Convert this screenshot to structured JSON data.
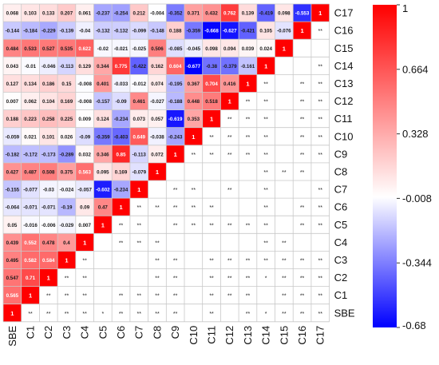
{
  "chart_data": {
    "type": "heatmap",
    "title": "",
    "xlabel": "",
    "ylabel": "",
    "labels": [
      "SBE",
      "C1",
      "C2",
      "C3",
      "C4",
      "C5",
      "C6",
      "C7",
      "C8",
      "C9",
      "C10",
      "C11",
      "C12",
      "C13",
      "C14",
      "C15",
      "C16",
      "C17"
    ],
    "row_order_top_to_bottom": [
      "C17",
      "C16",
      "C15",
      "C14",
      "C13",
      "C12",
      "C11",
      "C10",
      "C9",
      "C8",
      "C7",
      "C6",
      "C5",
      "C4",
      "C3",
      "C2",
      "C1",
      "SBE"
    ],
    "diagonal_value": "1",
    "lower_triangle": {
      "C1": [
        "0.565"
      ],
      "C2": [
        "0.547",
        "0.71"
      ],
      "C3": [
        "0.495",
        "0.582",
        "0.584"
      ],
      "C4": [
        "0.439",
        "0.552",
        "0.478",
        "0.4"
      ],
      "C5": [
        "0.05",
        "-0.016",
        "-0.006",
        "-0.029",
        "0.007"
      ],
      "C6": [
        "-0.064",
        "-0.071",
        "-0.071",
        "-0.19",
        "0.09",
        "0.47"
      ],
      "C7": [
        "-0.155",
        "-0.077",
        "-0.03",
        "-0.024",
        "-0.057",
        "-0.602",
        "-0.234"
      ],
      "C8": [
        "0.427",
        "0.487",
        "0.508",
        "0.375",
        "0.563",
        "0.095",
        "0.169",
        "-0.079"
      ],
      "C9": [
        "-0.182",
        "-0.172",
        "-0.173",
        "-0.289",
        "0.032",
        "0.346",
        "0.85",
        "-0.113",
        "0.072"
      ],
      "C10": [
        "-0.059",
        "0.021",
        "0.101",
        "0.026",
        "-0.09",
        "-0.359",
        "-0.403",
        "0.649",
        "-0.038",
        "-0.243"
      ],
      "C11": [
        "0.188",
        "0.223",
        "0.258",
        "0.225",
        "0.009",
        "0.124",
        "-0.234",
        "0.073",
        "0.057",
        "-0.619",
        "0.353"
      ],
      "C12": [
        "0.007",
        "0.062",
        "0.104",
        "0.169",
        "-0.008",
        "-0.157",
        "-0.09",
        "0.461",
        "-0.027",
        "-0.188",
        "0.448",
        "0.518"
      ],
      "C13": [
        "0.127",
        "0.134",
        "0.186",
        "0.15",
        "-0.008",
        "0.401",
        "-0.033",
        "-0.012",
        "0.074",
        "-0.195",
        "0.367",
        "0.704",
        "0.416"
      ],
      "C14": [
        "0.043",
        "-0.01",
        "-0.046",
        "-0.113",
        "0.129",
        "0.344",
        "0.775",
        "-0.422",
        "0.162",
        "0.604",
        "-0.677",
        "-0.38",
        "-0.379",
        "-0.161"
      ],
      "C15": [
        "0.484",
        "0.533",
        "0.527",
        "0.535",
        "0.622",
        "-0.02",
        "-0.021",
        "-0.025",
        "0.506",
        "-0.085",
        "-0.045",
        "0.098",
        "0.094",
        "0.039",
        "0.024"
      ],
      "C16": [
        "-0.144",
        "-0.184",
        "-0.229",
        "-0.139",
        "-0.04",
        "-0.132",
        "-0.132",
        "-0.099",
        "-0.148",
        "0.188",
        "-0.359",
        "-0.668",
        "-0.627",
        "-0.421",
        "0.105",
        "-0.076"
      ],
      "C17": [
        "0.068",
        "0.103",
        "0.133",
        "0.207",
        "0.061",
        "-0.237",
        "-0.254",
        "0.212",
        "-0.004",
        "-0.352",
        "0.371",
        "0.432",
        "0.762",
        "0.139",
        "-0.419",
        "0.098",
        "-0.553"
      ]
    },
    "upper_triangle": {
      "C1": [
        "**"
      ],
      "C2": [
        "**",
        "**"
      ],
      "C3": [
        "**",
        "**",
        "**"
      ],
      "C4": [
        "**",
        "**",
        "**",
        "**"
      ],
      "C5": [
        "*",
        "",
        "",
        "",
        ""
      ],
      "C6": [
        "**",
        "**",
        "",
        "",
        "**",
        "**"
      ],
      "C7": [
        "**",
        "**",
        "",
        "",
        "**",
        "**",
        "**"
      ],
      "C8": [
        "**",
        "**",
        "**",
        "**",
        "**",
        "",
        "**",
        ""
      ],
      "C9": [
        "**",
        "**",
        "**",
        "**",
        "",
        "**",
        "**",
        "**",
        ""
      ],
      "C10": [
        "",
        "",
        "",
        "",
        "",
        "**",
        "**",
        "**",
        "",
        "**"
      ],
      "C11": [
        "**",
        "**",
        "**",
        "**",
        "",
        "**",
        "**",
        "",
        "",
        "**",
        "**"
      ],
      "C12": [
        "",
        "**",
        "**",
        "**",
        "",
        "**",
        "",
        "**",
        "",
        "**",
        "**",
        "**"
      ],
      "C13": [
        "**",
        "**",
        "**",
        "**",
        "",
        "**",
        "",
        "",
        "",
        "**",
        "**",
        "**",
        "**"
      ],
      "C14": [
        "*",
        "",
        "*",
        "**",
        "**",
        "**",
        "**",
        "**",
        "**",
        "**",
        "**",
        "**",
        "**",
        "**"
      ],
      "C15": [
        "**",
        "**",
        "**",
        "**",
        "**",
        "",
        "",
        "",
        "**",
        "",
        "",
        "",
        "",
        "",
        ""
      ],
      "C16": [
        "**",
        "**",
        "**",
        "**",
        "",
        "**",
        "**",
        "",
        "**",
        "**",
        "**",
        "**",
        "**",
        "**",
        "",
        ""
      ],
      "C17": [
        "**",
        "**",
        "**",
        "**",
        "",
        "**",
        "**",
        "**",
        "",
        "**",
        "**",
        "**",
        "**",
        "**",
        "**",
        "",
        "**"
      ]
    },
    "colorbar": {
      "min": -0.68,
      "max": 1,
      "ticks": [
        "1",
        "0.664",
        "0.328",
        "-0.008",
        "-0.344",
        "-0.68"
      ],
      "colors": {
        "low": "#0000ff",
        "mid": "#ffffff",
        "high": "#ff0000"
      }
    },
    "grid": true
  }
}
